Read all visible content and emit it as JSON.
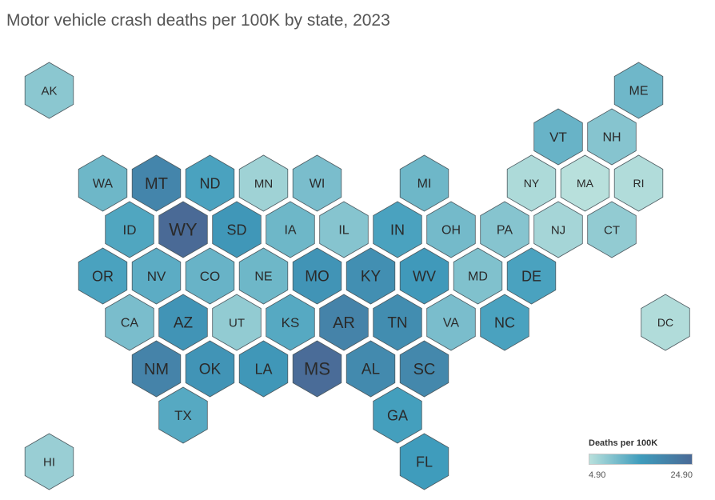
{
  "chart_data": {
    "type": "hex-tile-map",
    "title": "Motor vehicle crash deaths per 100K by state, 2023",
    "legend": {
      "title": "Deaths per 100K",
      "min_label": "4.90",
      "max_label": "24.90",
      "min": 4.9,
      "max": 24.9,
      "color_low": "#b8e0dc",
      "color_mid": "#3f9cbc",
      "color_high": "#4a6a96",
      "placement": "bottom-right"
    },
    "states": [
      {
        "abbr": "AK",
        "value": 8.6,
        "row": 0,
        "col": 1
      },
      {
        "abbr": "ME",
        "value": 10.9,
        "row": 0,
        "col": 12
      },
      {
        "abbr": "VT",
        "value": 11.5,
        "row": 1,
        "col": 10.5
      },
      {
        "abbr": "NH",
        "value": 9.0,
        "row": 1,
        "col": 11.5
      },
      {
        "abbr": "WA",
        "value": 11.0,
        "row": 2,
        "col": 2
      },
      {
        "abbr": "MT",
        "value": 19.5,
        "row": 2,
        "col": 3
      },
      {
        "abbr": "ND",
        "value": 14.0,
        "row": 2,
        "col": 4
      },
      {
        "abbr": "MN",
        "value": 7.0,
        "row": 2,
        "col": 5
      },
      {
        "abbr": "WI",
        "value": 10.0,
        "row": 2,
        "col": 6
      },
      {
        "abbr": "MI",
        "value": 11.0,
        "row": 2,
        "col": 8
      },
      {
        "abbr": "NY",
        "value": 5.8,
        "row": 2,
        "col": 10
      },
      {
        "abbr": "MA",
        "value": 4.9,
        "row": 2,
        "col": 11
      },
      {
        "abbr": "RI",
        "value": 5.5,
        "row": 2,
        "col": 12
      },
      {
        "abbr": "ID",
        "value": 13.5,
        "row": 3,
        "col": 2.5
      },
      {
        "abbr": "WY",
        "value": 24.9,
        "row": 3,
        "col": 3.5
      },
      {
        "abbr": "SD",
        "value": 16.0,
        "row": 3,
        "col": 4.5
      },
      {
        "abbr": "IA",
        "value": 11.0,
        "row": 3,
        "col": 5.5
      },
      {
        "abbr": "IL",
        "value": 9.0,
        "row": 3,
        "col": 6.5
      },
      {
        "abbr": "IN",
        "value": 14.0,
        "row": 3,
        "col": 7.5
      },
      {
        "abbr": "OH",
        "value": 10.5,
        "row": 3,
        "col": 8.5
      },
      {
        "abbr": "PA",
        "value": 9.0,
        "row": 3,
        "col": 9.5
      },
      {
        "abbr": "NJ",
        "value": 6.5,
        "row": 3,
        "col": 10.5
      },
      {
        "abbr": "CT",
        "value": 8.0,
        "row": 3,
        "col": 11.5
      },
      {
        "abbr": "OR",
        "value": 14.0,
        "row": 4,
        "col": 2
      },
      {
        "abbr": "NV",
        "value": 12.5,
        "row": 4,
        "col": 3
      },
      {
        "abbr": "CO",
        "value": 11.5,
        "row": 4,
        "col": 4
      },
      {
        "abbr": "NE",
        "value": 11.0,
        "row": 4,
        "col": 5
      },
      {
        "abbr": "MO",
        "value": 16.5,
        "row": 4,
        "col": 6
      },
      {
        "abbr": "KY",
        "value": 17.5,
        "row": 4,
        "col": 7
      },
      {
        "abbr": "WV",
        "value": 15.5,
        "row": 4,
        "col": 8
      },
      {
        "abbr": "MD",
        "value": 9.5,
        "row": 4,
        "col": 9
      },
      {
        "abbr": "DE",
        "value": 14.0,
        "row": 4,
        "col": 10
      },
      {
        "abbr": "CA",
        "value": 10.0,
        "row": 5,
        "col": 2.5
      },
      {
        "abbr": "AZ",
        "value": 16.5,
        "row": 5,
        "col": 3.5
      },
      {
        "abbr": "UT",
        "value": 8.0,
        "row": 5,
        "col": 4.5
      },
      {
        "abbr": "KS",
        "value": 13.0,
        "row": 5,
        "col": 5.5
      },
      {
        "abbr": "AR",
        "value": 20.0,
        "row": 5,
        "col": 6.5
      },
      {
        "abbr": "TN",
        "value": 18.0,
        "row": 5,
        "col": 7.5
      },
      {
        "abbr": "VA",
        "value": 10.0,
        "row": 5,
        "col": 8.5
      },
      {
        "abbr": "NC",
        "value": 14.0,
        "row": 5,
        "col": 9.5
      },
      {
        "abbr": "DC",
        "value": 5.5,
        "row": 5,
        "col": 12.5
      },
      {
        "abbr": "NM",
        "value": 20.0,
        "row": 6,
        "col": 3
      },
      {
        "abbr": "OK",
        "value": 16.5,
        "row": 6,
        "col": 4
      },
      {
        "abbr": "LA",
        "value": 16.0,
        "row": 6,
        "col": 5
      },
      {
        "abbr": "MS",
        "value": 24.5,
        "row": 6,
        "col": 6
      },
      {
        "abbr": "AL",
        "value": 18.5,
        "row": 6,
        "col": 7
      },
      {
        "abbr": "SC",
        "value": 19.0,
        "row": 6,
        "col": 8
      },
      {
        "abbr": "TX",
        "value": 13.0,
        "row": 7,
        "col": 3.5
      },
      {
        "abbr": "GA",
        "value": 14.5,
        "row": 7,
        "col": 7.5
      },
      {
        "abbr": "HI",
        "value": 7.5,
        "row": 8,
        "col": 1
      },
      {
        "abbr": "FL",
        "value": 15.0,
        "row": 8,
        "col": 8
      }
    ]
  }
}
